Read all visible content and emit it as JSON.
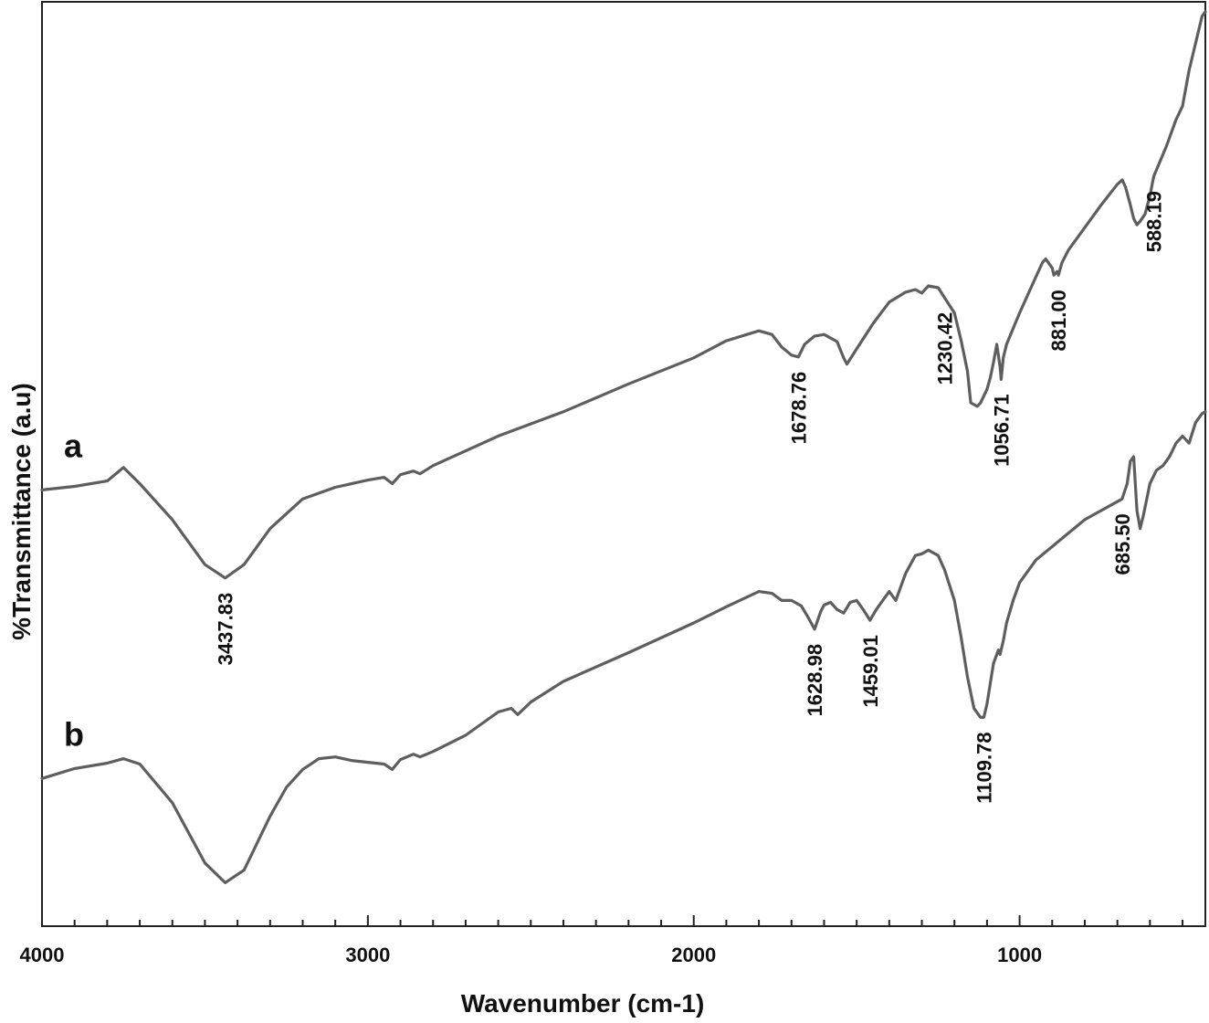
{
  "chart_data": {
    "type": "line",
    "title": "",
    "xlabel": "Wavenumber (cm-1)",
    "ylabel": "%Transmittance (a.u)",
    "xlim": [
      4000,
      430
    ],
    "x_reversed": true,
    "x_ticks": [
      4000,
      3000,
      2000,
      1000
    ],
    "x_tick_labels": [
      "4000",
      "3000",
      "2000",
      "1000"
    ],
    "y_unit": "arbitrary (relative transmittance, 0 = bottom of plot, 100 = top)",
    "ylim": [
      0,
      100
    ],
    "grid": false,
    "legend": "none",
    "series": [
      {
        "name": "a",
        "color": "#5e5e5e",
        "points": [
          [
            4000,
            46.3
          ],
          [
            3900,
            46.7
          ],
          [
            3800,
            47.3
          ],
          [
            3750,
            48.8
          ],
          [
            3700,
            47.0
          ],
          [
            3600,
            43.0
          ],
          [
            3500,
            38.0
          ],
          [
            3437.83,
            36.5
          ],
          [
            3380,
            38.0
          ],
          [
            3300,
            42.0
          ],
          [
            3200,
            45.3
          ],
          [
            3100,
            46.6
          ],
          [
            3000,
            47.4
          ],
          [
            2950,
            47.7
          ],
          [
            2925,
            47.0
          ],
          [
            2900,
            48.0
          ],
          [
            2860,
            48.4
          ],
          [
            2840,
            48.1
          ],
          [
            2800,
            49.0
          ],
          [
            2600,
            52.3
          ],
          [
            2400,
            55.0
          ],
          [
            2200,
            58.1
          ],
          [
            2000,
            61.0
          ],
          [
            1900,
            62.9
          ],
          [
            1800,
            64.0
          ],
          [
            1760,
            63.6
          ],
          [
            1730,
            62.2
          ],
          [
            1700,
            61.3
          ],
          [
            1678.76,
            61.1
          ],
          [
            1660,
            62.5
          ],
          [
            1630,
            63.4
          ],
          [
            1600,
            63.6
          ],
          [
            1560,
            62.8
          ],
          [
            1540,
            61.0
          ],
          [
            1530,
            60.3
          ],
          [
            1500,
            62.0
          ],
          [
            1450,
            64.8
          ],
          [
            1400,
            67.2
          ],
          [
            1350,
            68.3
          ],
          [
            1320,
            68.6
          ],
          [
            1300,
            68.2
          ],
          [
            1280,
            69.0
          ],
          [
            1250,
            68.8
          ],
          [
            1200,
            66.0
          ],
          [
            1180,
            63.0
          ],
          [
            1160,
            59.5
          ],
          [
            1150,
            56.0
          ],
          [
            1140,
            55.8
          ],
          [
            1130,
            55.6
          ],
          [
            1120,
            56.0
          ],
          [
            1100,
            57.5
          ],
          [
            1090,
            58.8
          ],
          [
            1080,
            60.5
          ],
          [
            1070,
            62.5
          ],
          [
            1060,
            60.0
          ],
          [
            1056.71,
            58.6
          ],
          [
            1050,
            61.0
          ],
          [
            1040,
            62.5
          ],
          [
            1000,
            66.0
          ],
          [
            950,
            70.0
          ],
          [
            930,
            71.6
          ],
          [
            920,
            72.0
          ],
          [
            900,
            71.0
          ],
          [
            895,
            70.2
          ],
          [
            885,
            70.6
          ],
          [
            881.0,
            70.2
          ],
          [
            870,
            71.6
          ],
          [
            850,
            73.0
          ],
          [
            800,
            75.5
          ],
          [
            750,
            78.0
          ],
          [
            700,
            80.3
          ],
          [
            685,
            80.8
          ],
          [
            675,
            80.0
          ],
          [
            660,
            78.0
          ],
          [
            650,
            76.5
          ],
          [
            640,
            75.8
          ],
          [
            630,
            76.2
          ],
          [
            615,
            77.0
          ],
          [
            600,
            79.0
          ],
          [
            588.19,
            81.2
          ],
          [
            550,
            84.5
          ],
          [
            520,
            87.5
          ],
          [
            500,
            89.0
          ],
          [
            480,
            93.0
          ],
          [
            460,
            96.0
          ],
          [
            440,
            99.0
          ],
          [
            430,
            99.5
          ]
        ]
      },
      {
        "name": "b",
        "color": "#5e5e5e",
        "points": [
          [
            4000,
            14.2
          ],
          [
            3900,
            15.3
          ],
          [
            3800,
            15.9
          ],
          [
            3750,
            16.4
          ],
          [
            3700,
            15.8
          ],
          [
            3600,
            11.5
          ],
          [
            3500,
            4.8
          ],
          [
            3437.83,
            2.6
          ],
          [
            3380,
            4.0
          ],
          [
            3300,
            10.0
          ],
          [
            3250,
            13.2
          ],
          [
            3200,
            15.2
          ],
          [
            3150,
            16.4
          ],
          [
            3100,
            16.6
          ],
          [
            3050,
            16.2
          ],
          [
            3000,
            16.0
          ],
          [
            2950,
            15.8
          ],
          [
            2925,
            15.2
          ],
          [
            2900,
            16.3
          ],
          [
            2860,
            16.9
          ],
          [
            2840,
            16.6
          ],
          [
            2800,
            17.2
          ],
          [
            2700,
            19.0
          ],
          [
            2600,
            21.6
          ],
          [
            2560,
            22.0
          ],
          [
            2540,
            21.3
          ],
          [
            2500,
            22.7
          ],
          [
            2400,
            25.0
          ],
          [
            2200,
            28.2
          ],
          [
            2000,
            31.5
          ],
          [
            1900,
            33.3
          ],
          [
            1800,
            35.0
          ],
          [
            1760,
            34.8
          ],
          [
            1730,
            34.0
          ],
          [
            1700,
            34.0
          ],
          [
            1670,
            33.4
          ],
          [
            1650,
            32.2
          ],
          [
            1628.98,
            30.8
          ],
          [
            1610,
            32.8
          ],
          [
            1600,
            33.5
          ],
          [
            1580,
            33.8
          ],
          [
            1560,
            33.0
          ],
          [
            1540,
            32.6
          ],
          [
            1520,
            33.8
          ],
          [
            1500,
            34.0
          ],
          [
            1480,
            33.0
          ],
          [
            1459.01,
            31.8
          ],
          [
            1440,
            33.0
          ],
          [
            1420,
            34.0
          ],
          [
            1400,
            35.0
          ],
          [
            1380,
            34.0
          ],
          [
            1350,
            37.0
          ],
          [
            1320,
            39.0
          ],
          [
            1300,
            39.2
          ],
          [
            1280,
            39.6
          ],
          [
            1250,
            39.0
          ],
          [
            1230,
            37.4
          ],
          [
            1200,
            34.0
          ],
          [
            1180,
            30.0
          ],
          [
            1160,
            25.5
          ],
          [
            1140,
            22.0
          ],
          [
            1120,
            21.0
          ],
          [
            1109.78,
            21.0
          ],
          [
            1100,
            22.5
          ],
          [
            1080,
            27.0
          ],
          [
            1065,
            28.5
          ],
          [
            1060,
            28.0
          ],
          [
            1050,
            29.5
          ],
          [
            1040,
            31.5
          ],
          [
            1020,
            34.0
          ],
          [
            1000,
            36.0
          ],
          [
            950,
            38.5
          ],
          [
            900,
            40.0
          ],
          [
            850,
            41.5
          ],
          [
            800,
            43.0
          ],
          [
            750,
            44.0
          ],
          [
            700,
            45.0
          ],
          [
            685.5,
            45.3
          ],
          [
            670,
            47.0
          ],
          [
            660,
            49.5
          ],
          [
            650,
            50.0
          ],
          [
            640,
            44.0
          ],
          [
            630,
            42.0
          ],
          [
            620,
            43.5
          ],
          [
            600,
            47.0
          ],
          [
            580,
            48.5
          ],
          [
            560,
            49.0
          ],
          [
            540,
            50.0
          ],
          [
            520,
            51.5
          ],
          [
            500,
            52.3
          ],
          [
            480,
            51.5
          ],
          [
            460,
            53.8
          ],
          [
            440,
            54.8
          ],
          [
            430,
            55.0
          ]
        ]
      }
    ],
    "annotations": [
      {
        "series": "a",
        "text": "3437.83",
        "x": 3437.83
      },
      {
        "series": "a",
        "text": "1678.76",
        "x": 1678.76
      },
      {
        "series": "a",
        "text": "1230.42",
        "x": 1230.42
      },
      {
        "series": "a",
        "text": "1056.71",
        "x": 1056.71
      },
      {
        "series": "a",
        "text": "881.00",
        "x": 881.0
      },
      {
        "series": "a",
        "text": "588.19",
        "x": 588.19
      },
      {
        "series": "b",
        "text": "1628.98",
        "x": 1628.98
      },
      {
        "series": "b",
        "text": "1459.01",
        "x": 1459.01
      },
      {
        "series": "b",
        "text": "1109.78",
        "x": 1109.78
      },
      {
        "series": "b",
        "text": "685.50",
        "x": 685.5
      }
    ]
  }
}
